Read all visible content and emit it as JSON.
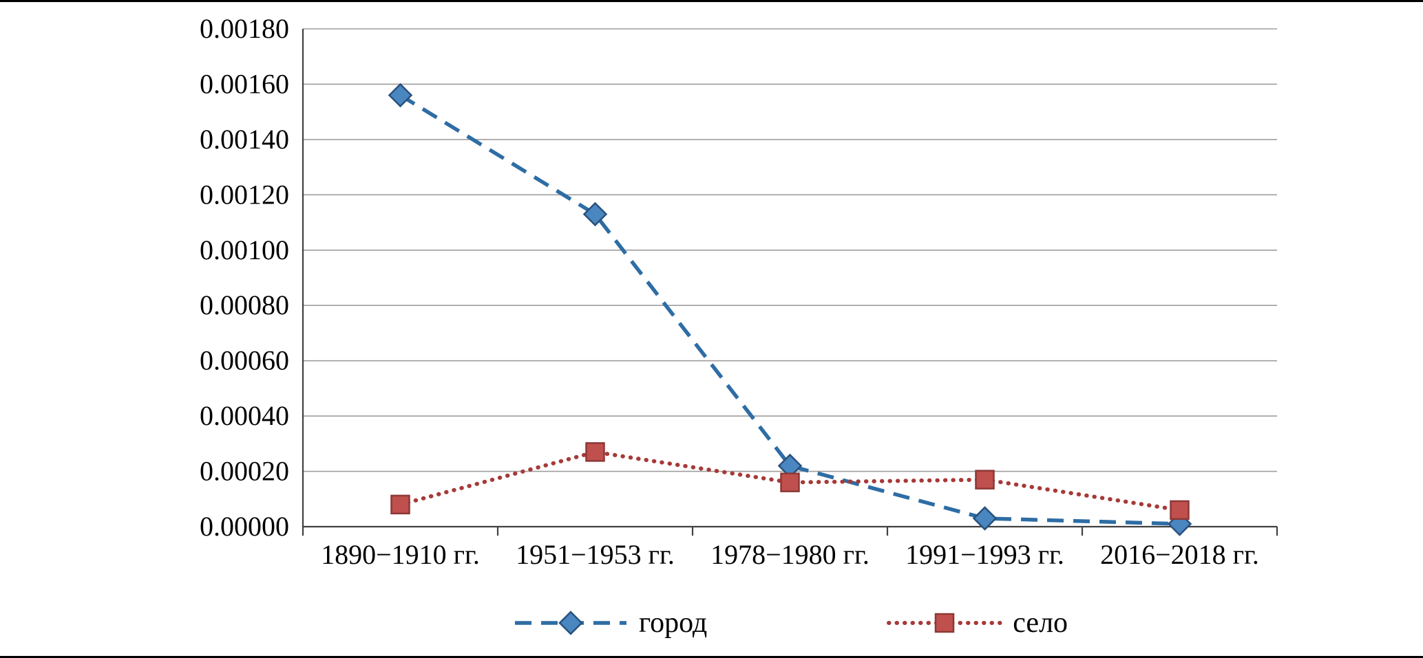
{
  "chart_data": {
    "type": "line",
    "title": "",
    "xlabel": "",
    "ylabel": "",
    "categories": [
      "1890−1910 гг.",
      "1951−1953 гг.",
      "1978−1980 гг.",
      "1991−1993 гг.",
      "2016−2018 гг."
    ],
    "series": [
      {
        "name": "город",
        "values": [
          0.00156,
          0.00113,
          0.00022,
          3e-05,
          1e-05
        ],
        "color": "#2e6da4",
        "marker": "diamond",
        "marker_fill": "#4a86c0",
        "marker_stroke": "#28517c",
        "dash_array": "24 14",
        "linecap": "butt",
        "line_width": 5.5
      },
      {
        "name": "село",
        "values": [
          8e-05,
          0.00027,
          0.00016,
          0.00017,
          6e-05
        ],
        "color": "#a63a38",
        "marker": "square",
        "marker_fill": "#c0504d",
        "marker_stroke": "#8c3836",
        "dash_array": "0.5 11",
        "linecap": "round",
        "line_width": 6
      }
    ],
    "ylim": [
      0,
      0.0018
    ],
    "ytick_step": 0.0002,
    "ytick_labels": [
      "0.00000",
      "0.00020",
      "0.00040",
      "0.00060",
      "0.00080",
      "0.00100",
      "0.00120",
      "0.00140",
      "0.00160",
      "0.00180"
    ],
    "grid": true,
    "grid_color": "#9d9d9d",
    "axis_color": "#404040",
    "legend_position": "bottom"
  }
}
